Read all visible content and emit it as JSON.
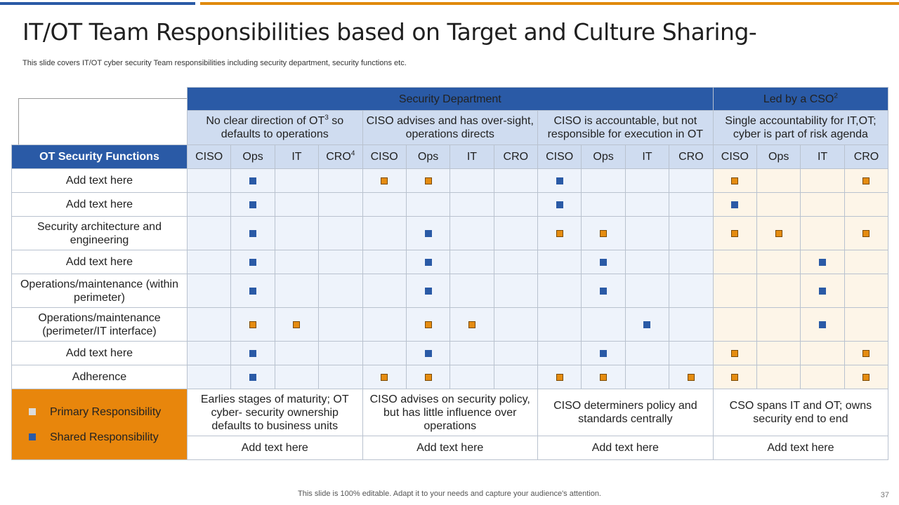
{
  "header": {
    "title": "IT/OT Team Responsibilities based on Target and Culture Sharing-",
    "subtitle": "This slide covers IT/OT  cyber security Team responsibilities including security department, security functions etc."
  },
  "table": {
    "band_security": "Security Department",
    "band_cso": "Led by a CSO",
    "band_cso_sup": "2",
    "desc": {
      "g1a": "No clear direction of OT",
      "g1sup": "3",
      "g1b": " so defaults to operations",
      "g2": "CISO advises and has over-sight, operations directs",
      "g3": "CISO is accountable, but not responsible for execution in OT",
      "g4": "Single accountability for IT,OT; cyber is part of risk agenda"
    },
    "functions_header": "OT Security Functions",
    "col_labels": [
      "CISO",
      "Ops",
      "IT",
      "CRO",
      "CISO",
      "Ops",
      "IT",
      "CRO",
      "CISO",
      "Ops",
      "IT",
      "CRO",
      "CISO",
      "Ops",
      "IT",
      "CRO"
    ],
    "cro_sup": "4",
    "rows": [
      {
        "label": "Add text here",
        "cells": [
          "",
          "p",
          "",
          "",
          "s",
          "s",
          "",
          "",
          "p",
          "",
          "",
          "",
          "s",
          "",
          "",
          "s"
        ]
      },
      {
        "label": "Add text here",
        "cells": [
          "",
          "p",
          "",
          "",
          "",
          "",
          "",
          "",
          "p",
          "",
          "",
          "",
          "p",
          "",
          "",
          ""
        ]
      },
      {
        "label": "Security architecture and engineering",
        "cells": [
          "",
          "p",
          "",
          "",
          "",
          "p",
          "",
          "",
          "s",
          "s",
          "",
          "",
          "s",
          "s",
          "",
          "s"
        ]
      },
      {
        "label": "Add text here",
        "cells": [
          "",
          "p",
          "",
          "",
          "",
          "p",
          "",
          "",
          "",
          "p",
          "",
          "",
          "",
          "",
          "p",
          ""
        ]
      },
      {
        "label": "Operations/maintenance  (within perimeter)",
        "cells": [
          "",
          "p",
          "",
          "",
          "",
          "p",
          "",
          "",
          "",
          "p",
          "",
          "",
          "",
          "",
          "p",
          ""
        ]
      },
      {
        "label": "Operations/maintenance (perimeter/IT  interface)",
        "cells": [
          "",
          "s",
          "s",
          "",
          "",
          "s",
          "s",
          "",
          "",
          "",
          "p",
          "",
          "",
          "",
          "p",
          ""
        ]
      },
      {
        "label": "Add text here",
        "cells": [
          "",
          "p",
          "",
          "",
          "",
          "p",
          "",
          "",
          "",
          "p",
          "",
          "",
          "s",
          "",
          "",
          "s"
        ]
      },
      {
        "label": "Adherence",
        "cells": [
          "",
          "p",
          "",
          "",
          "s",
          "s",
          "",
          "",
          "s",
          "s",
          "",
          "s",
          "s",
          "",
          "",
          "s"
        ]
      }
    ],
    "legend": {
      "primary": "Primary Responsibility",
      "shared": "Shared Responsibility"
    },
    "foot_desc": [
      "Earlies stages of maturity;  OT cyber- security ownership defaults to business units",
      "CISO advises on security policy, but has little influence over operations",
      "CISO determiners policy and standards centrally",
      "CSO spans IT and OT;  owns security end to end"
    ],
    "foot_add": [
      "Add text here",
      "Add text here",
      "Add text here",
      "Add text here"
    ]
  },
  "footer": {
    "note": "This slide is 100% editable. Adapt it to your needs and capture your audience's attention.",
    "page": "37"
  },
  "colors": {
    "primary_blue": "#2a5aa6",
    "accent_orange": "#e8860c",
    "header_light": "#cfdcf0"
  }
}
